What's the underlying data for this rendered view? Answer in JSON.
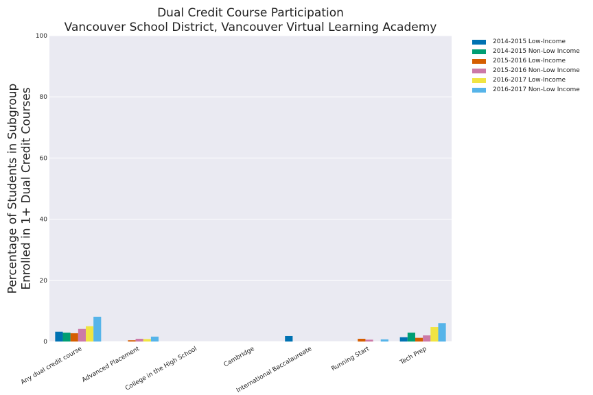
{
  "chart_data": {
    "type": "bar",
    "title": "Dual Credit Course Participation",
    "subtitle": "Vancouver School District, Vancouver Virtual Learning Academy",
    "ylabel_lines": [
      "Percentage of Students in Subgroup",
      "Enrolled in 1+ Dual Credit Courses"
    ],
    "xlabel": "",
    "ylim": [
      0,
      100
    ],
    "yticks": [
      "0",
      "20",
      "40",
      "60",
      "80",
      "100"
    ],
    "grid": true,
    "legend_position": "outside top-right",
    "categories": [
      "Any dual credit course",
      "Advanced Placement",
      "College in the High School",
      "Cambridge",
      "International Baccalaureate",
      "Running Start",
      "Tech Prep"
    ],
    "series": [
      {
        "name": "2014-2015 Low-Income",
        "color": "#0072B2",
        "values": [
          3.2,
          0,
          0,
          0,
          1.8,
          0,
          1.4
        ]
      },
      {
        "name": "2014-2015 Non-Low Income",
        "color": "#009E73",
        "values": [
          2.9,
          0,
          0,
          0,
          0,
          0,
          2.9
        ]
      },
      {
        "name": "2015-2016 Low-Income",
        "color": "#D55E00",
        "values": [
          2.7,
          0.4,
          0,
          0,
          0,
          0.9,
          1.2
        ]
      },
      {
        "name": "2015-2016 Non-Low Income",
        "color": "#CC79A7",
        "values": [
          4.1,
          0.9,
          0,
          0,
          0,
          0.6,
          2.0
        ]
      },
      {
        "name": "2016-2017 Low-Income",
        "color": "#F0E442",
        "values": [
          5.0,
          0.8,
          0,
          0,
          0,
          0,
          4.7
        ]
      },
      {
        "name": "2016-2017 Non-Low Income",
        "color": "#56B4E9",
        "values": [
          8.1,
          1.6,
          0,
          0,
          0,
          0.7,
          6.0
        ]
      }
    ]
  }
}
